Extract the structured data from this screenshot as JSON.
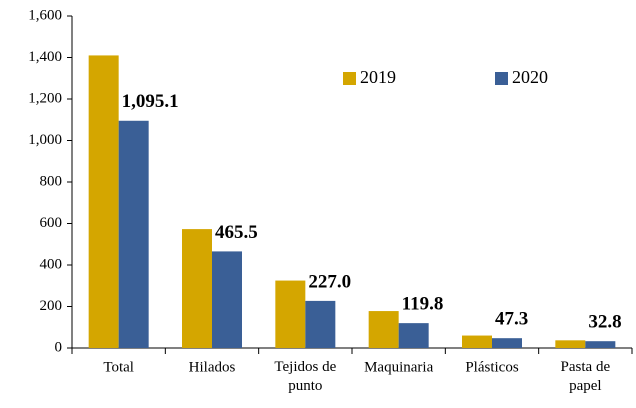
{
  "chart_data": {
    "type": "bar",
    "categories": [
      "Total",
      "Hilados",
      "Tejidos de punto",
      "Maquinaria",
      "Plásticos",
      "Pasta de papel"
    ],
    "series": [
      {
        "name": "2019",
        "color": "#d4a600",
        "values": [
          1410,
          573,
          325,
          178,
          60,
          37
        ]
      },
      {
        "name": "2020",
        "color": "#3a5f96",
        "values": [
          1095.1,
          465.5,
          227.0,
          119.8,
          47.3,
          32.8
        ],
        "value_labels": [
          "1,095.1",
          "465.5",
          "227.0",
          "119.8",
          "47.3",
          "32.8"
        ]
      }
    ],
    "ylim": [
      0,
      1600
    ],
    "yticks": [
      0,
      200,
      400,
      600,
      800,
      {
        "value": 1000,
        "label": "1,000"
      },
      {
        "value": 1200,
        "label": "1,200"
      },
      {
        "value": 1400,
        "label": "1,400"
      },
      {
        "value": 1600,
        "label": "1,600"
      }
    ],
    "legend": "top-right"
  }
}
